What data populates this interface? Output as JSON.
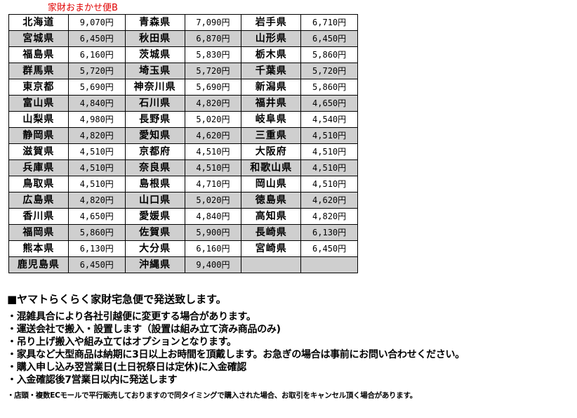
{
  "title": "家財おまかせ便B",
  "rows": [
    [
      [
        "北海道",
        "9,070円"
      ],
      [
        "青森県",
        "7,090円"
      ],
      [
        "岩手県",
        "6,710円"
      ]
    ],
    [
      [
        "宮城県",
        "6,450円"
      ],
      [
        "秋田県",
        "6,870円"
      ],
      [
        "山形県",
        "6,450円"
      ]
    ],
    [
      [
        "福島県",
        "6,160円"
      ],
      [
        "茨城県",
        "5,830円"
      ],
      [
        "栃木県",
        "5,860円"
      ]
    ],
    [
      [
        "群馬県",
        "5,720円"
      ],
      [
        "埼玉県",
        "5,720円"
      ],
      [
        "千葉県",
        "5,720円"
      ]
    ],
    [
      [
        "東京都",
        "5,690円"
      ],
      [
        "神奈川県",
        "5,690円"
      ],
      [
        "新潟県",
        "5,860円"
      ]
    ],
    [
      [
        "富山県",
        "4,840円"
      ],
      [
        "石川県",
        "4,820円"
      ],
      [
        "福井県",
        "4,650円"
      ]
    ],
    [
      [
        "山梨県",
        "4,980円"
      ],
      [
        "長野県",
        "5,020円"
      ],
      [
        "岐阜県",
        "4,540円"
      ]
    ],
    [
      [
        "静岡県",
        "4,820円"
      ],
      [
        "愛知県",
        "4,620円"
      ],
      [
        "三重県",
        "4,510円"
      ]
    ],
    [
      [
        "滋賀県",
        "4,510円"
      ],
      [
        "京都府",
        "4,510円"
      ],
      [
        "大阪府",
        "4,510円"
      ]
    ],
    [
      [
        "兵庫県",
        "4,510円"
      ],
      [
        "奈良県",
        "4,510円"
      ],
      [
        "和歌山県",
        "4,510円"
      ]
    ],
    [
      [
        "鳥取県",
        "4,510円"
      ],
      [
        "島根県",
        "4,710円"
      ],
      [
        "岡山県",
        "4,510円"
      ]
    ],
    [
      [
        "広島県",
        "4,820円"
      ],
      [
        "山口県",
        "5,020円"
      ],
      [
        "徳島県",
        "4,620円"
      ]
    ],
    [
      [
        "香川県",
        "4,650円"
      ],
      [
        "愛媛県",
        "4,840円"
      ],
      [
        "高知県",
        "4,820円"
      ]
    ],
    [
      [
        "福岡県",
        "5,860円"
      ],
      [
        "佐賀県",
        "5,900円"
      ],
      [
        "長崎県",
        "6,130円"
      ]
    ],
    [
      [
        "熊本県",
        "6,130円"
      ],
      [
        "大分県",
        "6,160円"
      ],
      [
        "宮崎県",
        "6,450円"
      ]
    ],
    [
      [
        "鹿児島県",
        "6,450円"
      ],
      [
        "沖縄県",
        "9,400円"
      ],
      [
        "",
        ""
      ]
    ]
  ],
  "notes": {
    "heading": "■ヤマトらくらく家財宅急便で発送致します。",
    "items": [
      "・混雑具合により各社引越便に変更する場合があります。",
      "・運送会社で搬入・設置します（設置は組み立て済み商品のみ)",
      "・吊り上げ搬入や組み立てはオプションとなります。",
      "・家具など大型商品は納期に3日以上お時間を頂戴します。お急ぎの場合は事前にお問い合わせください。",
      "・購入申し込み翌営業日(土日祝祭日は定休)に入金確認",
      "・入金確認後7営業日以内に発送します"
    ],
    "footnote": "・店頭・複数ECモールで平行販売しておりますので同タイミングで購入された場合、お取引をキャンセル頂く場合があります。"
  }
}
